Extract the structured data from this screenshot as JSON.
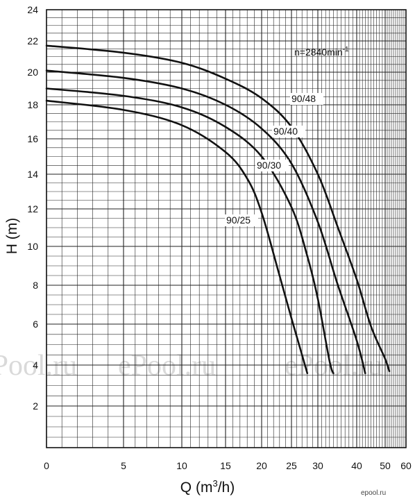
{
  "chart_data": {
    "type": "line",
    "title": "",
    "annotation": {
      "text": "n=2840min",
      "sup": "-1"
    },
    "xlabel": {
      "text": "Q (m",
      "sup": "3",
      "tail": "/h)"
    },
    "ylabel": "H (m)",
    "x_scale": "nonlinear (quadratic-like, compressed toward right)",
    "x_ticks": [
      0,
      5,
      10,
      15,
      20,
      25,
      30,
      40,
      50,
      60
    ],
    "y_ticks": [
      2,
      4,
      6,
      8,
      10,
      12,
      14,
      16,
      18,
      20,
      22,
      24
    ],
    "xlim": [
      0,
      60
    ],
    "ylim": [
      0,
      24
    ],
    "grid": true,
    "series": [
      {
        "name": "90/48",
        "points": [
          [
            0,
            21.7
          ],
          [
            5,
            21.25
          ],
          [
            10,
            20.6
          ],
          [
            15,
            19.6
          ],
          [
            20,
            18.4
          ],
          [
            25,
            16.7
          ],
          [
            30,
            14.0
          ],
          [
            35,
            11.1
          ],
          [
            40,
            8.3
          ],
          [
            45,
            5.9
          ],
          [
            50,
            4.3
          ],
          [
            52,
            3.7
          ]
        ]
      },
      {
        "name": "90/40",
        "points": [
          [
            0,
            20.1
          ],
          [
            5,
            19.65
          ],
          [
            10,
            19.0
          ],
          [
            15,
            18.0
          ],
          [
            20,
            16.6
          ],
          [
            25,
            14.6
          ],
          [
            30,
            11.3
          ],
          [
            35,
            8.1
          ],
          [
            40,
            5.2
          ],
          [
            43,
            3.6
          ]
        ]
      },
      {
        "name": "90/30",
        "points": [
          [
            0,
            19.0
          ],
          [
            5,
            18.55
          ],
          [
            10,
            17.85
          ],
          [
            15,
            16.7
          ],
          [
            20,
            15.0
          ],
          [
            25,
            12.1
          ],
          [
            28,
            9.5
          ],
          [
            30,
            7.3
          ],
          [
            33,
            4.2
          ],
          [
            34,
            3.6
          ]
        ]
      },
      {
        "name": "90/25",
        "points": [
          [
            0,
            18.25
          ],
          [
            5,
            17.7
          ],
          [
            10,
            16.8
          ],
          [
            15,
            15.25
          ],
          [
            18,
            13.75
          ],
          [
            20,
            11.8
          ],
          [
            23,
            8.5
          ],
          [
            25,
            6.3
          ],
          [
            27,
            4.5
          ],
          [
            28,
            3.6
          ]
        ]
      }
    ],
    "curve_labels": [
      "90/48",
      "90/40",
      "90/30",
      "90/25"
    ],
    "watermarks": [
      "ePool.ru",
      "ePool.ru",
      "ePool.ru"
    ],
    "brand": "epool.ru"
  }
}
